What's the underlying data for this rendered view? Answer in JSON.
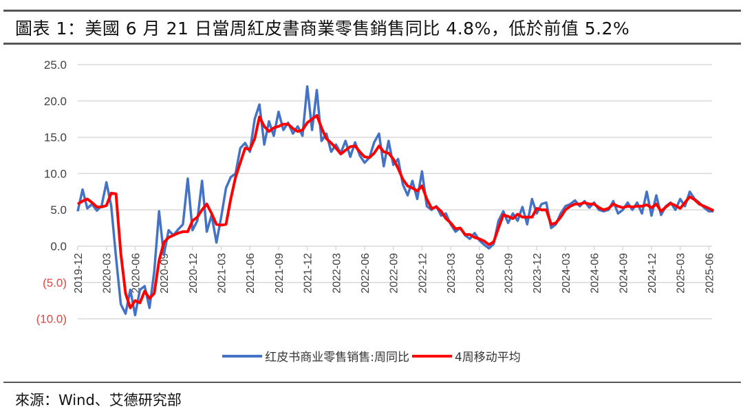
{
  "title": "圖表 1：美國 6 月 21 日當周紅皮書商業零售銷售同比 4.8%，低於前值 5.2%",
  "source": "來源：Wind、艾德研究部",
  "chart_data": {
    "type": "line",
    "title": "",
    "xlabel": "",
    "ylabel": "",
    "ylim": [
      -10,
      25
    ],
    "yticks": [
      25,
      20,
      15,
      10,
      5,
      0,
      -5,
      -10
    ],
    "ytick_labels": [
      "25.0",
      "20.0",
      "15.0",
      "10.0",
      "5.0",
      "0.0",
      "(5.0)",
      "(10.0)"
    ],
    "negative_label_color": "#e8413c",
    "grid": true,
    "legend_position": "bottom",
    "xtick_labels": [
      "2019-12",
      "2020-03",
      "2020-06",
      "2020-09",
      "2020-12",
      "2021-03",
      "2021-06",
      "2021-09",
      "2021-12",
      "2022-03",
      "2022-06",
      "2022-09",
      "2022-12",
      "2023-03",
      "2023-06",
      "2023-09",
      "2023-12",
      "2024-03",
      "2024-06",
      "2024-09",
      "2024-12",
      "2025-03",
      "2025-06"
    ],
    "months": [
      "2019-12",
      "2020-01",
      "2020-02",
      "2020-03",
      "2020-04",
      "2020-05",
      "2020-06",
      "2020-07",
      "2020-08",
      "2020-09",
      "2020-10",
      "2020-11",
      "2020-12",
      "2021-01",
      "2021-02",
      "2021-03",
      "2021-04",
      "2021-05",
      "2021-06",
      "2021-07",
      "2021-08",
      "2021-09",
      "2021-10",
      "2021-11",
      "2021-12",
      "2022-01",
      "2022-02",
      "2022-03",
      "2022-04",
      "2022-05",
      "2022-06",
      "2022-07",
      "2022-08",
      "2022-09",
      "2022-10",
      "2022-11",
      "2022-12",
      "2023-01",
      "2023-02",
      "2023-03",
      "2023-04",
      "2023-05",
      "2023-06",
      "2023-07",
      "2023-08",
      "2023-09",
      "2023-10",
      "2023-11",
      "2023-12",
      "2024-01",
      "2024-02",
      "2024-03",
      "2024-04",
      "2024-05",
      "2024-06",
      "2024-07",
      "2024-08",
      "2024-09",
      "2024-10",
      "2024-11",
      "2024-12",
      "2025-01",
      "2025-02",
      "2025-03",
      "2025-04",
      "2025-05",
      "2025-06"
    ],
    "series": [
      {
        "name": "红皮书商业零售销售:周同比",
        "color": "#4472c4",
        "values_semi_monthly": [
          4.8,
          7.8,
          5.2,
          5.8,
          4.9,
          5.6,
          8.8,
          5.5,
          -1.5,
          -8.0,
          -9.3,
          -6.0,
          -9.5,
          -6.0,
          -5.5,
          -8.5,
          -3.5,
          4.8,
          -1.2,
          2.2,
          1.5,
          2.3,
          3.0,
          9.3,
          2.2,
          3.5,
          9.0,
          2.0,
          4.3,
          0.5,
          4.0,
          8.0,
          9.5,
          10.0,
          13.5,
          14.2,
          13.0,
          17.5,
          19.5,
          14.0,
          17.2,
          15.2,
          18.5,
          16.0,
          17.0,
          15.5,
          16.5,
          15.2,
          22.0,
          16.0,
          21.5,
          14.5,
          15.5,
          13.0,
          14.0,
          12.8,
          14.5,
          12.3,
          14.3,
          12.5,
          11.5,
          12.2,
          14.3,
          15.5,
          11.0,
          14.5,
          11.2,
          12.0,
          8.5,
          7.0,
          9.0,
          6.5,
          10.3,
          5.5,
          5.0,
          5.5,
          4.2,
          4.5,
          3.0,
          2.0,
          2.5,
          1.5,
          1.0,
          1.8,
          0.8,
          0.2,
          -0.3,
          0.3,
          3.5,
          4.8,
          3.2,
          4.5,
          3.5,
          5.4,
          3.0,
          6.5,
          4.5,
          5.8,
          6.0,
          2.5,
          3.0,
          4.5,
          5.5,
          5.8,
          6.3,
          5.5,
          6.2,
          5.3,
          6.0,
          5.0,
          4.8,
          5.0,
          6.2,
          4.5,
          5.0,
          6.0,
          5.0,
          6.0,
          4.5,
          7.5,
          4.2,
          7.0,
          4.3,
          5.5,
          6.0,
          5.0,
          6.5,
          5.5,
          7.5,
          6.5,
          6.0,
          5.3,
          4.8,
          4.8
        ]
      },
      {
        "name": "4周移动平均",
        "color": "#ff0000",
        "values_semi_monthly": [
          5.8,
          6.2,
          6.5,
          6.0,
          5.4,
          5.4,
          5.6,
          7.3,
          7.2,
          -1.0,
          -6.5,
          -8.5,
          -7.5,
          -7.8,
          -6.2,
          -7.2,
          -6.5,
          -2.0,
          0.5,
          1.2,
          1.5,
          1.8,
          2.0,
          2.0,
          3.5,
          4.0,
          5.0,
          5.8,
          4.5,
          3.0,
          2.9,
          3.0,
          6.5,
          9.5,
          11.5,
          13.5,
          13.3,
          14.8,
          17.8,
          16.5,
          15.8,
          16.3,
          16.5,
          16.8,
          16.8,
          16.2,
          15.8,
          16.0,
          17.0,
          17.5,
          18.0,
          16.3,
          14.8,
          14.2,
          13.5,
          12.7,
          13.2,
          13.7,
          13.8,
          13.0,
          12.3,
          12.2,
          12.8,
          13.8,
          13.0,
          12.8,
          12.0,
          10.7,
          9.2,
          8.3,
          8.0,
          7.6,
          8.3,
          6.5,
          5.2,
          5.4,
          4.8,
          3.8,
          3.2,
          2.4,
          2.5,
          1.6,
          1.6,
          1.2,
          1.0,
          0.7,
          0.2,
          0.6,
          2.5,
          4.3,
          4.1,
          3.8,
          4.4,
          4.0,
          4.0,
          4.0,
          5.2,
          5.0,
          5.0,
          3.0,
          3.2,
          4.0,
          5.0,
          5.5,
          5.8,
          5.8,
          6.0,
          5.8,
          5.8,
          5.3,
          5.0,
          5.2,
          5.8,
          5.5,
          5.3,
          5.5,
          5.4,
          5.5,
          5.5,
          5.7,
          5.3,
          5.8,
          4.8,
          5.4,
          5.9,
          5.6,
          5.2,
          6.0,
          6.8,
          6.4,
          5.8,
          5.5,
          5.2,
          4.9
        ]
      }
    ]
  }
}
